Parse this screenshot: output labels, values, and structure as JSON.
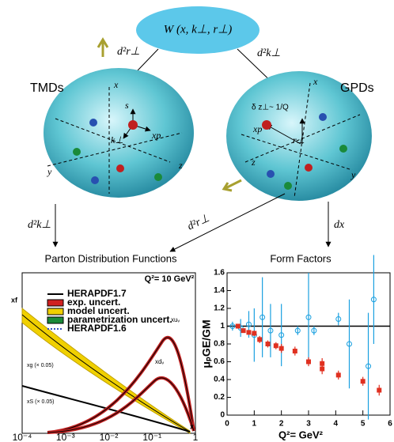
{
  "top": {
    "label": "W (x, k⊥, r⊥)"
  },
  "arrows": {
    "left_top": "d²r⊥",
    "right_top": "d²k⊥",
    "left_bottom": "d²k⊥",
    "middle": "d²r⊥",
    "right_bottom": "dx"
  },
  "tmds": {
    "title": "TMDs",
    "x": "x",
    "y": "y",
    "z": "z",
    "s": "s",
    "xp": "xp",
    "k": "k⊥"
  },
  "gpds": {
    "title": "GPDs",
    "x": "x",
    "y": "y",
    "z": "z",
    "xp": "xp",
    "r": "r⊥",
    "delta": "δ z⊥~ 1/Q"
  },
  "pdf": {
    "title": "Parton Distribution Functions",
    "scale": "Q²= 10 GeV²",
    "legend": [
      "HERAPDF1.7",
      "exp. uncert.",
      "model uncert.",
      "parametrization uncert.",
      "HERAPDF1.6"
    ],
    "curves": {
      "uv": "xuᵥ",
      "dv": "xdᵥ",
      "g": "xg (× 0.05)",
      "s": "xS (× 0.05)"
    },
    "ylabel": "xf",
    "xlabel": "x",
    "xticks": [
      "10⁻⁴",
      "10⁻³",
      "10⁻²",
      "10⁻¹",
      "1"
    ]
  },
  "ff": {
    "title": "Form Factors",
    "ylabel": "μₚGE/GM",
    "xlabel": "Q²= GeV²",
    "xlim": [
      0,
      6
    ],
    "xticks": [
      0,
      1,
      2,
      3,
      4,
      5,
      6
    ],
    "ylim": [
      0,
      1.6
    ],
    "yticks": [
      0,
      0.2,
      0.4,
      0.6,
      0.8,
      1,
      1.2,
      1.4,
      1.6
    ],
    "reference_line": 1,
    "red": {
      "x": [
        0.4,
        0.6,
        0.8,
        1.0,
        1.2,
        1.5,
        1.8,
        2.0,
        2.5,
        3.0,
        3.5,
        3.5,
        4.1,
        5.0,
        5.6
      ],
      "values": [
        1.0,
        0.95,
        0.93,
        0.92,
        0.85,
        0.8,
        0.78,
        0.75,
        0.72,
        0.6,
        0.58,
        0.52,
        0.45,
        0.38,
        0.28
      ],
      "errors": [
        0.02,
        0.02,
        0.02,
        0.03,
        0.04,
        0.04,
        0.04,
        0.05,
        0.05,
        0.05,
        0.06,
        0.06,
        0.05,
        0.05,
        0.06
      ]
    },
    "blue": {
      "x": [
        0.2,
        0.5,
        0.8,
        1.0,
        1.3,
        1.6,
        2.0,
        2.6,
        3.2,
        4.1,
        3.0,
        4.5,
        5.2,
        5.4
      ],
      "values": [
        1.0,
        0.98,
        1.02,
        0.9,
        1.1,
        0.95,
        0.9,
        0.95,
        0.95,
        1.08,
        1.1,
        0.8,
        0.55,
        1.3
      ],
      "errors": [
        0.05,
        0.1,
        0.15,
        0.3,
        0.45,
        0.3,
        0.35,
        0.05,
        0.05,
        0.07,
        0.5,
        0.5,
        0.6,
        0.5
      ]
    }
  }
}
